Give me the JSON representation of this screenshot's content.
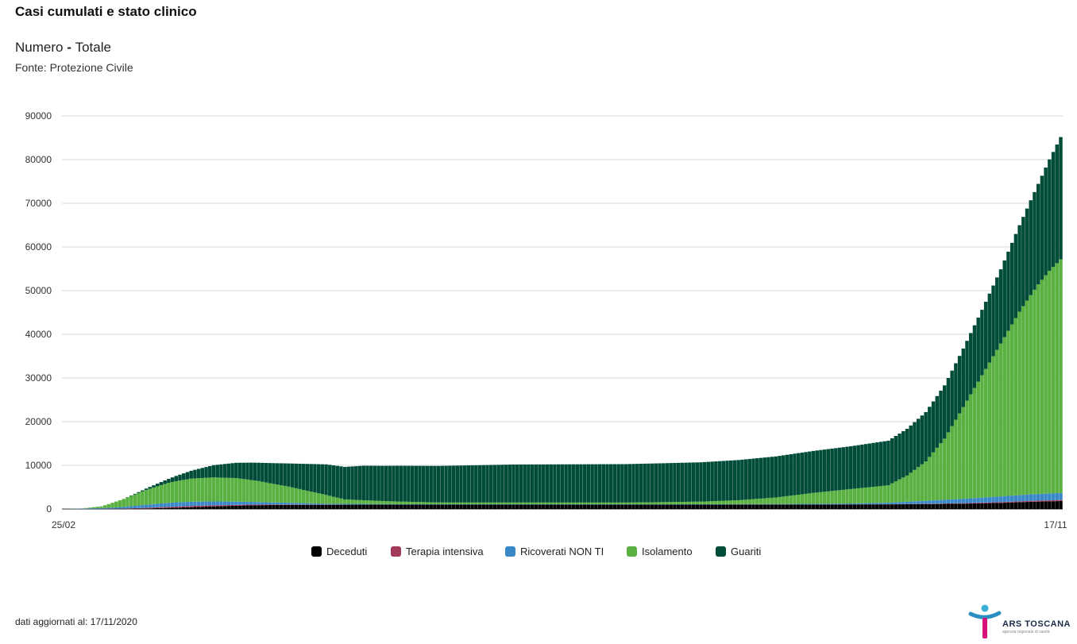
{
  "header": {
    "title": "Casi cumulati e stato clinico",
    "subtitle_a": "Numero",
    "subtitle_sep": " - ",
    "subtitle_b": "Totale",
    "source": "Fonte: Protezione Civile"
  },
  "footer": {
    "updated": "dati aggiornati al: 17/11/2020"
  },
  "logo": {
    "text": "ARS TOSCANA",
    "sub": "agenzia regionale di sanità"
  },
  "chart_data": {
    "type": "bar",
    "stacked": true,
    "title": "Casi cumulati e stato clinico",
    "xlabel": "",
    "ylabel": "",
    "x_start": "25/02",
    "x_end": "17/11",
    "x_tick_labels": [
      "25/02",
      "17/11"
    ],
    "ylim": [
      0,
      90000
    ],
    "y_ticks": [
      0,
      10000,
      20000,
      30000,
      40000,
      50000,
      60000,
      70000,
      80000,
      90000
    ],
    "grid": true,
    "legend_position": "bottom",
    "series": [
      {
        "name": "Deceduti",
        "color": "#000000",
        "keyframes": [
          [
            0,
            0
          ],
          [
            10,
            5
          ],
          [
            20,
            80
          ],
          [
            30,
            300
          ],
          [
            40,
            600
          ],
          [
            50,
            850
          ],
          [
            60,
            950
          ],
          [
            80,
            1000
          ],
          [
            120,
            1000
          ],
          [
            170,
            1010
          ],
          [
            200,
            1030
          ],
          [
            220,
            1060
          ],
          [
            230,
            1120
          ],
          [
            240,
            1220
          ],
          [
            250,
            1400
          ],
          [
            258,
            1650
          ],
          [
            266,
            1820
          ]
        ]
      },
      {
        "name": "Terapia intensiva",
        "color": "#a23a5a",
        "keyframes": [
          [
            0,
            0
          ],
          [
            15,
            50
          ],
          [
            25,
            200
          ],
          [
            35,
            280
          ],
          [
            45,
            200
          ],
          [
            60,
            80
          ],
          [
            80,
            20
          ],
          [
            160,
            10
          ],
          [
            200,
            15
          ],
          [
            220,
            30
          ],
          [
            230,
            60
          ],
          [
            240,
            120
          ],
          [
            250,
            180
          ],
          [
            258,
            220
          ],
          [
            266,
            240
          ]
        ]
      },
      {
        "name": "Ricoverati NON TI",
        "color": "#3a87c8",
        "keyframes": [
          [
            0,
            0
          ],
          [
            12,
            200
          ],
          [
            22,
            700
          ],
          [
            30,
            1000
          ],
          [
            40,
            900
          ],
          [
            55,
            500
          ],
          [
            70,
            200
          ],
          [
            90,
            80
          ],
          [
            160,
            60
          ],
          [
            190,
            100
          ],
          [
            210,
            200
          ],
          [
            220,
            350
          ],
          [
            230,
            700
          ],
          [
            240,
            1000
          ],
          [
            250,
            1300
          ],
          [
            258,
            1500
          ],
          [
            266,
            1600
          ]
        ]
      },
      {
        "name": "Isolamento",
        "color": "#5ab040",
        "keyframes": [
          [
            0,
            0
          ],
          [
            5,
            30
          ],
          [
            10,
            400
          ],
          [
            16,
            1800
          ],
          [
            22,
            3400
          ],
          [
            28,
            4600
          ],
          [
            34,
            5300
          ],
          [
            40,
            5500
          ],
          [
            46,
            5400
          ],
          [
            52,
            4800
          ],
          [
            60,
            3700
          ],
          [
            70,
            2000
          ],
          [
            75,
            1000
          ],
          [
            85,
            700
          ],
          [
            100,
            400
          ],
          [
            150,
            400
          ],
          [
            170,
            600
          ],
          [
            180,
            900
          ],
          [
            190,
            1500
          ],
          [
            200,
            2500
          ],
          [
            210,
            3300
          ],
          [
            220,
            4000
          ],
          [
            225,
            6000
          ],
          [
            230,
            9000
          ],
          [
            235,
            14000
          ],
          [
            240,
            21000
          ],
          [
            245,
            28000
          ],
          [
            250,
            35000
          ],
          [
            255,
            42000
          ],
          [
            260,
            48000
          ],
          [
            263,
            51000
          ],
          [
            266,
            53500
          ]
        ]
      },
      {
        "name": "Guariti",
        "color": "#004c38",
        "keyframes": [
          [
            0,
            0
          ],
          [
            10,
            0
          ],
          [
            16,
            0
          ],
          [
            22,
            300
          ],
          [
            28,
            900
          ],
          [
            34,
            1800
          ],
          [
            40,
            2800
          ],
          [
            46,
            3500
          ],
          [
            52,
            4200
          ],
          [
            60,
            5300
          ],
          [
            70,
            7000
          ],
          [
            80,
            7900
          ],
          [
            90,
            8200
          ],
          [
            120,
            8700
          ],
          [
            150,
            8800
          ],
          [
            170,
            9000
          ],
          [
            180,
            9200
          ],
          [
            190,
            9400
          ],
          [
            200,
            9600
          ],
          [
            210,
            9800
          ],
          [
            220,
            10200
          ],
          [
            225,
            10700
          ],
          [
            230,
            11300
          ],
          [
            235,
            12200
          ],
          [
            240,
            13400
          ],
          [
            245,
            15000
          ],
          [
            250,
            17000
          ],
          [
            255,
            19800
          ],
          [
            260,
            23000
          ],
          [
            263,
            25500
          ],
          [
            266,
            28000
          ]
        ]
      }
    ]
  }
}
